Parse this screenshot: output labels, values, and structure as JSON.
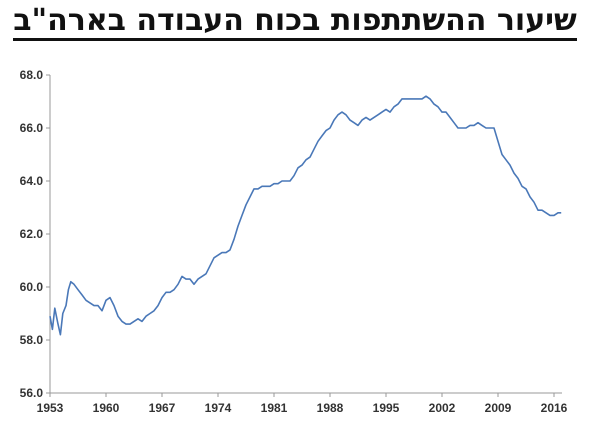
{
  "chart_data": {
    "type": "line",
    "title": "שיעור ההשתתפות בכוח העבודה בארה\"ב",
    "xlabel": "",
    "ylabel": "",
    "xlim": [
      1953,
      2017
    ],
    "ylim": [
      56.0,
      68.0
    ],
    "y_ticks": [
      "56.0",
      "58.0",
      "60.0",
      "62.0",
      "64.0",
      "66.0",
      "68.0"
    ],
    "x_ticks": [
      "1953",
      "1960",
      "1967",
      "1974",
      "1981",
      "1988",
      "1995",
      "2002",
      "2009",
      "2016"
    ],
    "grid": false,
    "legend": "none",
    "line_color": "#4a78b8",
    "series": [
      {
        "x": [
          1953.0,
          1953.3,
          1953.6,
          1954.0,
          1954.3,
          1954.6,
          1955.0,
          1955.3,
          1955.6,
          1956.0,
          1956.5,
          1957.0,
          1957.5,
          1958.0,
          1958.5,
          1959.0,
          1959.5,
          1960.0,
          1960.5,
          1961.0,
          1961.5,
          1962.0,
          1962.5,
          1963.0,
          1963.5,
          1964.0,
          1964.5,
          1965.0,
          1965.5,
          1966.0,
          1966.5,
          1967.0,
          1967.5,
          1968.0,
          1968.5,
          1969.0,
          1969.5,
          1970.0,
          1970.5,
          1971.0,
          1971.5,
          1972.0,
          1972.5,
          1973.0,
          1973.5,
          1974.0,
          1974.5,
          1975.0,
          1975.5,
          1976.0,
          1976.5,
          1977.0,
          1977.5,
          1978.0,
          1978.5,
          1979.0,
          1979.5,
          1980.0,
          1980.5,
          1981.0,
          1981.5,
          1982.0,
          1982.5,
          1983.0,
          1983.5,
          1984.0,
          1984.5,
          1985.0,
          1985.5,
          1986.0,
          1986.5,
          1987.0,
          1987.5,
          1988.0,
          1988.5,
          1989.0,
          1989.5,
          1990.0,
          1990.5,
          1991.0,
          1991.5,
          1992.0,
          1992.5,
          1993.0,
          1993.5,
          1994.0,
          1994.5,
          1995.0,
          1995.5,
          1996.0,
          1996.5,
          1997.0,
          1997.5,
          1998.0,
          1998.5,
          1999.0,
          1999.5,
          2000.0,
          2000.5,
          2001.0,
          2001.5,
          2002.0,
          2002.5,
          2003.0,
          2003.5,
          2004.0,
          2004.5,
          2005.0,
          2005.5,
          2006.0,
          2006.5,
          2007.0,
          2007.5,
          2008.0,
          2008.5,
          2009.0,
          2009.5,
          2010.0,
          2010.5,
          2011.0,
          2011.5,
          2012.0,
          2012.5,
          2013.0,
          2013.5,
          2014.0,
          2014.5,
          2015.0,
          2015.5,
          2016.0,
          2016.5,
          2016.9
        ],
        "y": [
          58.9,
          58.4,
          59.2,
          58.6,
          58.2,
          59.0,
          59.3,
          59.9,
          60.2,
          60.1,
          59.9,
          59.7,
          59.5,
          59.4,
          59.3,
          59.3,
          59.1,
          59.5,
          59.6,
          59.3,
          58.9,
          58.7,
          58.6,
          58.6,
          58.7,
          58.8,
          58.7,
          58.9,
          59.0,
          59.1,
          59.3,
          59.6,
          59.8,
          59.8,
          59.9,
          60.1,
          60.4,
          60.3,
          60.3,
          60.1,
          60.3,
          60.4,
          60.5,
          60.8,
          61.1,
          61.2,
          61.3,
          61.3,
          61.4,
          61.8,
          62.3,
          62.7,
          63.1,
          63.4,
          63.7,
          63.7,
          63.8,
          63.8,
          63.8,
          63.9,
          63.9,
          64.0,
          64.0,
          64.0,
          64.2,
          64.5,
          64.6,
          64.8,
          64.9,
          65.2,
          65.5,
          65.7,
          65.9,
          66.0,
          66.3,
          66.5,
          66.6,
          66.5,
          66.3,
          66.2,
          66.1,
          66.3,
          66.4,
          66.3,
          66.4,
          66.5,
          66.6,
          66.7,
          66.6,
          66.8,
          66.9,
          67.1,
          67.1,
          67.1,
          67.1,
          67.1,
          67.1,
          67.2,
          67.1,
          66.9,
          66.8,
          66.6,
          66.6,
          66.4,
          66.2,
          66.0,
          66.0,
          66.0,
          66.1,
          66.1,
          66.2,
          66.1,
          66.0,
          66.0,
          66.0,
          65.5,
          65.0,
          64.8,
          64.6,
          64.3,
          64.1,
          63.8,
          63.7,
          63.4,
          63.2,
          62.9,
          62.9,
          62.8,
          62.7,
          62.7,
          62.8,
          62.8
        ]
      }
    ]
  }
}
